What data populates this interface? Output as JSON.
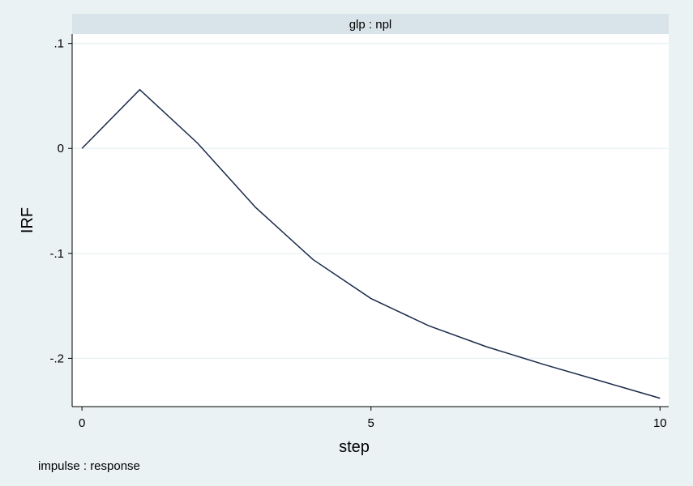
{
  "chart_data": {
    "type": "line",
    "panel_title": "glp : npl",
    "xlabel": "step",
    "ylabel": "IRF",
    "note": "impulse : response",
    "x": [
      0,
      1,
      2,
      3,
      4,
      5,
      6,
      7,
      8,
      9,
      10
    ],
    "series": [
      {
        "values": [
          0,
          0.056,
          0.005,
          -0.056,
          -0.106,
          -0.143,
          -0.169,
          -0.189,
          -0.206,
          -0.222,
          -0.238
        ]
      }
    ],
    "xlim": [
      -0.17,
      10.15
    ],
    "ylim": [
      -0.246,
      0.109
    ],
    "xticks": [
      {
        "value": 0,
        "label": "0"
      },
      {
        "value": 5,
        "label": "5"
      },
      {
        "value": 10,
        "label": "10"
      }
    ],
    "yticks": [
      {
        "value": 0.1,
        "label": ".1"
      },
      {
        "value": 0,
        "label": "0"
      },
      {
        "value": -0.1,
        "label": "-.1"
      },
      {
        "value": -0.2,
        "label": "-.2"
      }
    ],
    "grid": true,
    "colors": {
      "line": "#1a2a4a",
      "background": "#eaf2f3",
      "panel_header": "#d9e4ea",
      "grid": "#eaf2f3"
    }
  }
}
